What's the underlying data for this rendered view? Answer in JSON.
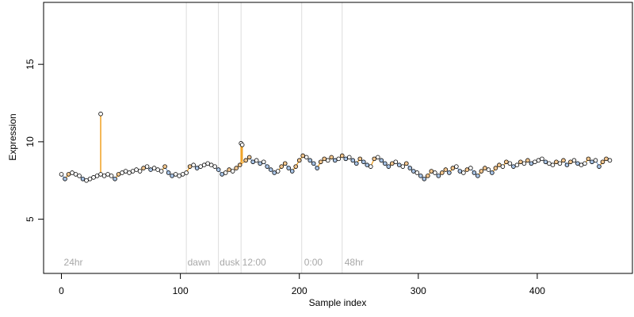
{
  "chart_data": {
    "type": "scatter",
    "title": "",
    "xlabel": "Sample index",
    "ylabel": "Expression",
    "xlim": [
      -15,
      480
    ],
    "ylim": [
      1.5,
      19
    ],
    "x_ticks": [
      0,
      100,
      200,
      300,
      400
    ],
    "y_ticks": [
      5,
      10,
      15
    ],
    "grid": false,
    "legend": "none",
    "colors": {
      "axis": "#000000",
      "vline": "#dcdcdc",
      "annotation_text": "#a8a8a8",
      "orange_segment": "#f0a020",
      "blue_segment": "#7fa6d6",
      "point_edge": "#000000",
      "point_fill_orange": "#f6c890",
      "point_fill_blue": "#a9c4e6",
      "point_fill_white": "#ffffff"
    },
    "vertical_lines": [
      105,
      132,
      151,
      202,
      236
    ],
    "annotations": [
      {
        "x": 2,
        "y": 2.0,
        "text": "24hr"
      },
      {
        "x": 106,
        "y": 2.0,
        "text": "dawn"
      },
      {
        "x": 133,
        "y": 2.0,
        "text": "dusk"
      },
      {
        "x": 152,
        "y": 2.0,
        "text": "12:00"
      },
      {
        "x": 204,
        "y": 2.0,
        "text": "0:00"
      },
      {
        "x": 238,
        "y": 2.0,
        "text": "48hr"
      }
    ],
    "spikes": [
      {
        "x": 33,
        "y": 11.8,
        "base": 7.9
      },
      {
        "x": 151,
        "y": 9.9,
        "base": 8.6
      },
      {
        "x": 152,
        "y": 9.8,
        "base": 8.7
      }
    ],
    "series": [
      {
        "values": [
          [
            0,
            7.9
          ],
          [
            3,
            7.6
          ],
          [
            6,
            7.9
          ],
          [
            9,
            8.0
          ],
          [
            12,
            7.9
          ],
          [
            15,
            7.8
          ],
          [
            18,
            7.6
          ],
          [
            21,
            7.5
          ],
          [
            24,
            7.6
          ],
          [
            27,
            7.7
          ],
          [
            30,
            7.8
          ],
          [
            33,
            7.9
          ],
          [
            36,
            7.8
          ],
          [
            39,
            7.9
          ],
          [
            42,
            7.8
          ],
          [
            45,
            7.6
          ],
          [
            48,
            7.9
          ],
          [
            51,
            8.0
          ],
          [
            54,
            8.1
          ],
          [
            57,
            8.0
          ],
          [
            60,
            8.1
          ],
          [
            63,
            8.2
          ],
          [
            66,
            8.1
          ],
          [
            69,
            8.3
          ],
          [
            72,
            8.4
          ],
          [
            75,
            8.2
          ],
          [
            78,
            8.3
          ],
          [
            81,
            8.2
          ],
          [
            84,
            8.1
          ],
          [
            87,
            8.4
          ],
          [
            90,
            8.0
          ],
          [
            93,
            7.8
          ],
          [
            96,
            7.9
          ],
          [
            99,
            7.8
          ],
          [
            102,
            7.9
          ],
          [
            105,
            8.0
          ],
          [
            108,
            8.4
          ],
          [
            111,
            8.5
          ],
          [
            114,
            8.3
          ],
          [
            117,
            8.4
          ],
          [
            120,
            8.5
          ],
          [
            123,
            8.6
          ],
          [
            126,
            8.5
          ],
          [
            129,
            8.4
          ],
          [
            132,
            8.2
          ],
          [
            135,
            7.9
          ],
          [
            138,
            8.0
          ],
          [
            141,
            8.2
          ],
          [
            144,
            8.1
          ],
          [
            147,
            8.3
          ],
          [
            150,
            8.5
          ],
          [
            155,
            8.8
          ],
          [
            158,
            9.0
          ],
          [
            161,
            8.7
          ],
          [
            164,
            8.8
          ],
          [
            167,
            8.6
          ],
          [
            170,
            8.7
          ],
          [
            173,
            8.4
          ],
          [
            176,
            8.2
          ],
          [
            179,
            8.0
          ],
          [
            182,
            8.1
          ],
          [
            185,
            8.4
          ],
          [
            188,
            8.6
          ],
          [
            191,
            8.3
          ],
          [
            194,
            8.1
          ],
          [
            197,
            8.4
          ],
          [
            200,
            8.8
          ],
          [
            203,
            9.1
          ],
          [
            206,
            9.0
          ],
          [
            209,
            8.8
          ],
          [
            212,
            8.6
          ],
          [
            215,
            8.3
          ],
          [
            218,
            8.7
          ],
          [
            221,
            8.9
          ],
          [
            224,
            8.8
          ],
          [
            227,
            9.0
          ],
          [
            230,
            8.8
          ],
          [
            233,
            8.9
          ],
          [
            236,
            9.1
          ],
          [
            239,
            8.9
          ],
          [
            242,
            9.0
          ],
          [
            245,
            8.8
          ],
          [
            248,
            8.6
          ],
          [
            251,
            8.9
          ],
          [
            254,
            8.7
          ],
          [
            257,
            8.5
          ],
          [
            260,
            8.4
          ],
          [
            263,
            8.9
          ],
          [
            266,
            9.0
          ],
          [
            269,
            8.8
          ],
          [
            272,
            8.6
          ],
          [
            275,
            8.4
          ],
          [
            278,
            8.6
          ],
          [
            281,
            8.7
          ],
          [
            284,
            8.5
          ],
          [
            287,
            8.4
          ],
          [
            290,
            8.6
          ],
          [
            293,
            8.3
          ],
          [
            296,
            8.1
          ],
          [
            299,
            8.0
          ],
          [
            302,
            7.8
          ],
          [
            305,
            7.6
          ],
          [
            308,
            7.8
          ],
          [
            311,
            8.1
          ],
          [
            314,
            8.0
          ],
          [
            317,
            7.8
          ],
          [
            320,
            8.0
          ],
          [
            323,
            8.2
          ],
          [
            326,
            8.0
          ],
          [
            329,
            8.3
          ],
          [
            332,
            8.4
          ],
          [
            335,
            8.1
          ],
          [
            338,
            8.0
          ],
          [
            341,
            8.2
          ],
          [
            344,
            8.3
          ],
          [
            347,
            8.0
          ],
          [
            350,
            7.8
          ],
          [
            353,
            8.1
          ],
          [
            356,
            8.3
          ],
          [
            359,
            8.2
          ],
          [
            362,
            8.0
          ],
          [
            365,
            8.3
          ],
          [
            368,
            8.5
          ],
          [
            371,
            8.4
          ],
          [
            374,
            8.7
          ],
          [
            377,
            8.6
          ],
          [
            380,
            8.4
          ],
          [
            383,
            8.5
          ],
          [
            386,
            8.7
          ],
          [
            389,
            8.6
          ],
          [
            392,
            8.8
          ],
          [
            395,
            8.6
          ],
          [
            398,
            8.7
          ],
          [
            401,
            8.8
          ],
          [
            404,
            8.9
          ],
          [
            407,
            8.7
          ],
          [
            410,
            8.6
          ],
          [
            413,
            8.5
          ],
          [
            416,
            8.7
          ],
          [
            419,
            8.6
          ],
          [
            422,
            8.8
          ],
          [
            425,
            8.5
          ],
          [
            428,
            8.7
          ],
          [
            431,
            8.8
          ],
          [
            434,
            8.6
          ],
          [
            437,
            8.5
          ],
          [
            440,
            8.6
          ],
          [
            443,
            8.9
          ],
          [
            446,
            8.7
          ],
          [
            449,
            8.8
          ],
          [
            452,
            8.4
          ],
          [
            455,
            8.7
          ],
          [
            458,
            8.9
          ],
          [
            461,
            8.8
          ]
        ]
      }
    ]
  }
}
